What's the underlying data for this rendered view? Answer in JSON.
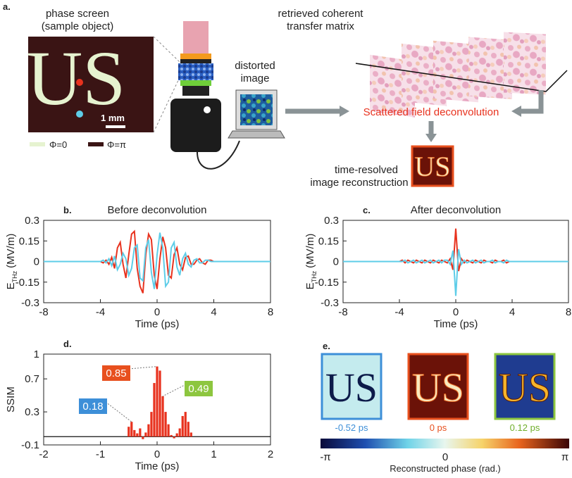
{
  "panel_a": {
    "label": "a.",
    "sample_title": [
      "phase screen",
      "(sample object)"
    ],
    "sample_letters": "US",
    "scale_bar": "1 mm",
    "legend": [
      "Φ=0",
      "Φ=π"
    ],
    "distorted": [
      "distorted",
      "image"
    ],
    "matrix": [
      "retrieved coherent",
      "transfer matrix"
    ],
    "deconvolution": "Scattered field deconvolution",
    "reconstruction": [
      "time-resolved",
      "image reconstruction"
    ]
  },
  "panel_e": {
    "label": "e.",
    "times": [
      "-0.52 ps",
      "0 ps",
      "0.12 ps"
    ],
    "colorbar_ticks": [
      "-π",
      "0",
      "π"
    ],
    "colorbar_label": "Reconstructed phase (rad.)"
  },
  "chart_data": [
    {
      "type": "line",
      "label": "b.",
      "title": "Before deconvolution",
      "xlabel": "Time (ps)",
      "ylabel": "E",
      "ylabel_sub": "THz",
      "ylabel_unit": "(MV/m)",
      "x": [
        -8,
        -4,
        -3.8,
        -3.6,
        -3.4,
        -3.2,
        -3,
        -2.8,
        -2.6,
        -2.4,
        -2.2,
        -2,
        -1.8,
        -1.6,
        -1.4,
        -1.2,
        -1,
        -0.8,
        -0.6,
        -0.4,
        -0.2,
        0,
        0.2,
        0.4,
        0.6,
        0.8,
        1,
        1.2,
        1.4,
        1.6,
        1.8,
        2,
        2.2,
        2.4,
        2.6,
        2.8,
        3,
        3.2,
        3.4,
        3.6,
        3.8,
        4,
        8
      ],
      "series": [
        {
          "color": "#e8321e",
          "values": [
            0,
            0,
            -0.01,
            0.01,
            -0.02,
            0.03,
            -0.05,
            0.1,
            0.14,
            -0.02,
            -0.12,
            0.05,
            0.2,
            0.22,
            -0.05,
            -0.18,
            -0.23,
            0.05,
            0.2,
            0.16,
            -0.1,
            -0.2,
            0.02,
            0.18,
            0.1,
            -0.1,
            -0.12,
            0.05,
            0.1,
            -0.02,
            -0.06,
            0.03,
            0.04,
            -0.02,
            -0.02,
            0.01,
            0.02,
            -0.01,
            -0.02,
            0.01,
            0.01,
            0,
            0
          ]
        },
        {
          "color": "#5ecde8",
          "values": [
            0,
            0,
            0.01,
            -0.01,
            0.02,
            -0.03,
            0.04,
            -0.06,
            -0.02,
            0.06,
            0.02,
            -0.1,
            -0.05,
            0.1,
            0.12,
            -0.12,
            -0.14,
            0.1,
            0.16,
            -0.08,
            -0.2,
            0.05,
            0.21,
            0.1,
            -0.18,
            -0.15,
            0.1,
            0.14,
            -0.04,
            -0.1,
            0.02,
            0.06,
            -0.02,
            -0.04,
            0.01,
            0.02,
            -0.01,
            -0.01,
            0.01,
            0.01,
            0,
            0,
            0
          ]
        }
      ],
      "xlim": [
        -8,
        8
      ],
      "xticks": [
        -8,
        -4,
        0,
        4,
        8
      ],
      "ylim": [
        -0.3,
        0.3
      ],
      "yticks": [
        -0.3,
        -0.15,
        0,
        0.15,
        0.3
      ]
    },
    {
      "type": "line",
      "label": "c.",
      "title": "After deconvolution",
      "xlabel": "Time (ps)",
      "ylabel": "E",
      "ylabel_sub": "THz",
      "ylabel_unit": "(MV/m)",
      "x": [
        -8,
        -4,
        -3.8,
        -3.6,
        -3.4,
        -3.2,
        -3,
        -2.8,
        -2.6,
        -2.4,
        -2.2,
        -2,
        -1.8,
        -1.6,
        -1.4,
        -1.2,
        -1,
        -0.8,
        -0.6,
        -0.4,
        -0.2,
        0,
        0.2,
        0.4,
        0.6,
        0.8,
        1,
        1.2,
        1.4,
        1.6,
        1.8,
        2,
        2.2,
        2.4,
        2.6,
        2.8,
        3,
        3.2,
        3.4,
        3.6,
        3.8,
        4,
        8
      ],
      "series": [
        {
          "color": "#e8321e",
          "values": [
            0,
            0,
            0.01,
            -0.01,
            0.01,
            0,
            -0.01,
            0.01,
            0,
            -0.01,
            0.01,
            0,
            -0.01,
            0.01,
            0,
            -0.01,
            0.01,
            0,
            -0.01,
            0.02,
            -0.06,
            0.24,
            -0.07,
            0.02,
            -0.01,
            0.01,
            0,
            -0.01,
            0.01,
            0,
            -0.01,
            0.01,
            0,
            0,
            -0.01,
            0.01,
            0,
            0,
            0.01,
            -0.01,
            0,
            0,
            0
          ]
        },
        {
          "color": "#5ecde8",
          "values": [
            0,
            0,
            0,
            0.01,
            -0.01,
            0,
            0.01,
            -0.01,
            0,
            0.01,
            -0.01,
            0,
            0.01,
            -0.01,
            0,
            0.01,
            -0.01,
            0.01,
            0.01,
            -0.02,
            0.08,
            -0.25,
            0.09,
            -0.02,
            0.01,
            -0.01,
            0,
            0.01,
            -0.01,
            0,
            0.01,
            -0.01,
            0,
            0,
            0.01,
            -0.01,
            0,
            0,
            -0.01,
            0.01,
            0,
            0,
            0
          ]
        }
      ],
      "xlim": [
        -8,
        8
      ],
      "xticks": [
        -8,
        -4,
        0,
        4,
        8
      ],
      "ylim": [
        -0.3,
        0.3
      ],
      "yticks": [
        -0.3,
        -0.15,
        0,
        0.15,
        0.3
      ]
    },
    {
      "type": "bar",
      "label": "d.",
      "xlabel": "Time (ps)",
      "ylabel": "SSIM",
      "color": "#e8321e",
      "x": [
        -0.5,
        -0.45,
        -0.4,
        -0.35,
        -0.3,
        -0.25,
        -0.2,
        -0.15,
        -0.1,
        -0.05,
        0,
        0.05,
        0.1,
        0.15,
        0.2,
        0.25,
        0.3,
        0.35,
        0.4,
        0.45,
        0.5,
        0.55,
        0.6
      ],
      "values": [
        0.12,
        0.18,
        0.08,
        0.04,
        0.1,
        -0.03,
        0.05,
        0.15,
        0.3,
        0.65,
        0.85,
        0.8,
        0.49,
        0.3,
        0.15,
        0.02,
        -0.02,
        0.04,
        0.1,
        0.25,
        0.3,
        0.18,
        0.05
      ],
      "annotations": [
        {
          "text": "0.85",
          "x": 0,
          "y": 0.85,
          "color": "#e8501e"
        },
        {
          "text": "0.49",
          "x": 0.1,
          "y": 0.49,
          "color": "#8dc63f"
        },
        {
          "text": "0.18",
          "x": -0.45,
          "y": 0.18,
          "color": "#3d8fd8"
        }
      ],
      "xlim": [
        -2,
        2
      ],
      "xticks": [
        -2,
        -1,
        0,
        1,
        2
      ],
      "ylim": [
        -0.1,
        1
      ],
      "yticks": [
        -0.1,
        0.3,
        0.7,
        1
      ]
    }
  ]
}
